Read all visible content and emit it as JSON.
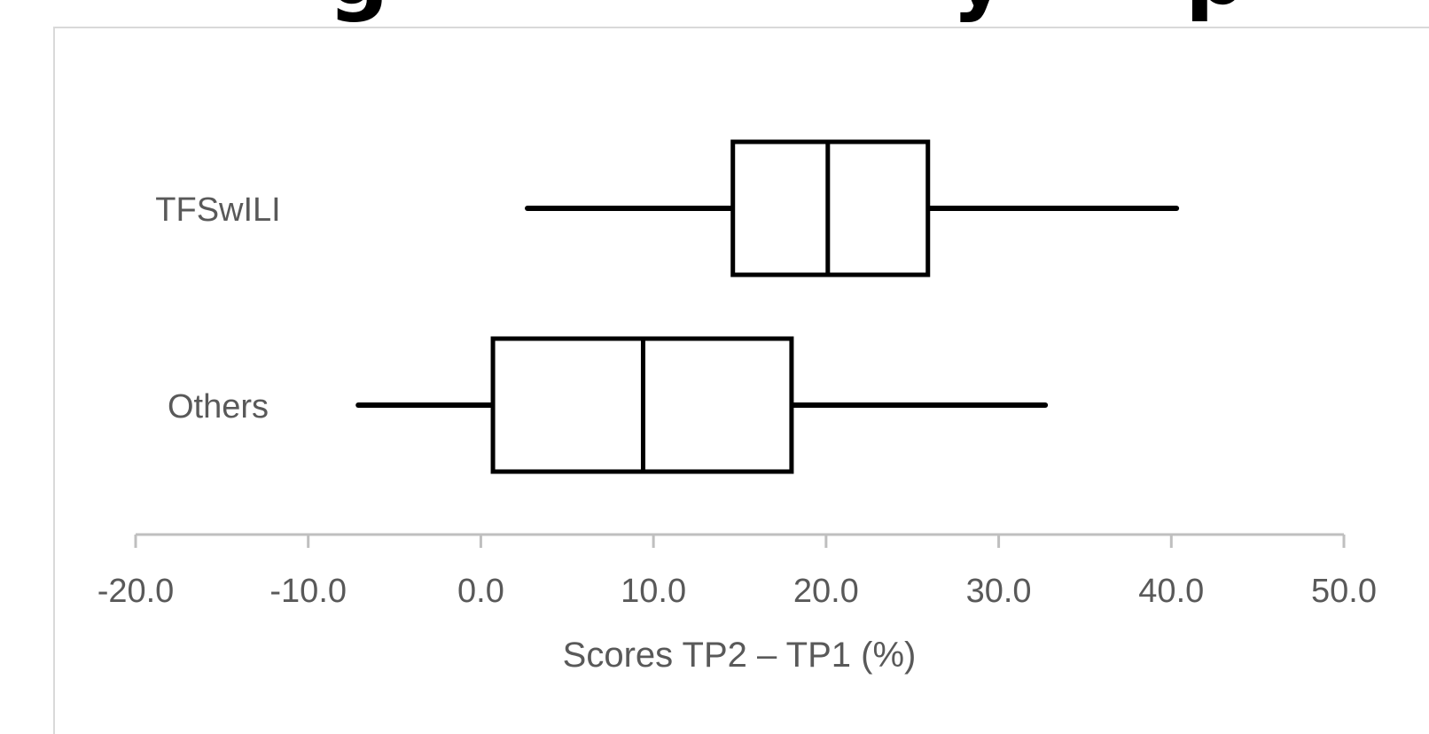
{
  "header": {
    "title_fragment": "g                   y      p             p      y"
  },
  "chart_data": {
    "type": "boxplot",
    "orientation": "horizontal",
    "title": "",
    "xlabel": "Scores TP2 – TP1 (%)",
    "ylabel": "",
    "xlim": [
      -20,
      50
    ],
    "x_ticks": [
      -20,
      -10,
      0,
      10,
      20,
      30,
      40,
      50
    ],
    "x_tick_labels": [
      "-20.0",
      "-10.0",
      "0.0",
      "10.0",
      "20.0",
      "30.0",
      "40.0",
      "50.0"
    ],
    "grid": false,
    "legend": "none",
    "categories": [
      "TFSwILI",
      "Others"
    ],
    "series": [
      {
        "category": "TFSwILI",
        "min": 2.7,
        "q1": 14.6,
        "median": 20.1,
        "q3": 25.9,
        "max": 40.3
      },
      {
        "category": "Others",
        "min": -7.1,
        "q1": 0.7,
        "median": 9.4,
        "q3": 18.0,
        "max": 32.7
      }
    ],
    "colors": {
      "box_stroke": "#000000",
      "box_fill": "#ffffff",
      "axis_line": "#bfbfbf",
      "text": "#595959",
      "frame": "#d9d9d9"
    }
  }
}
